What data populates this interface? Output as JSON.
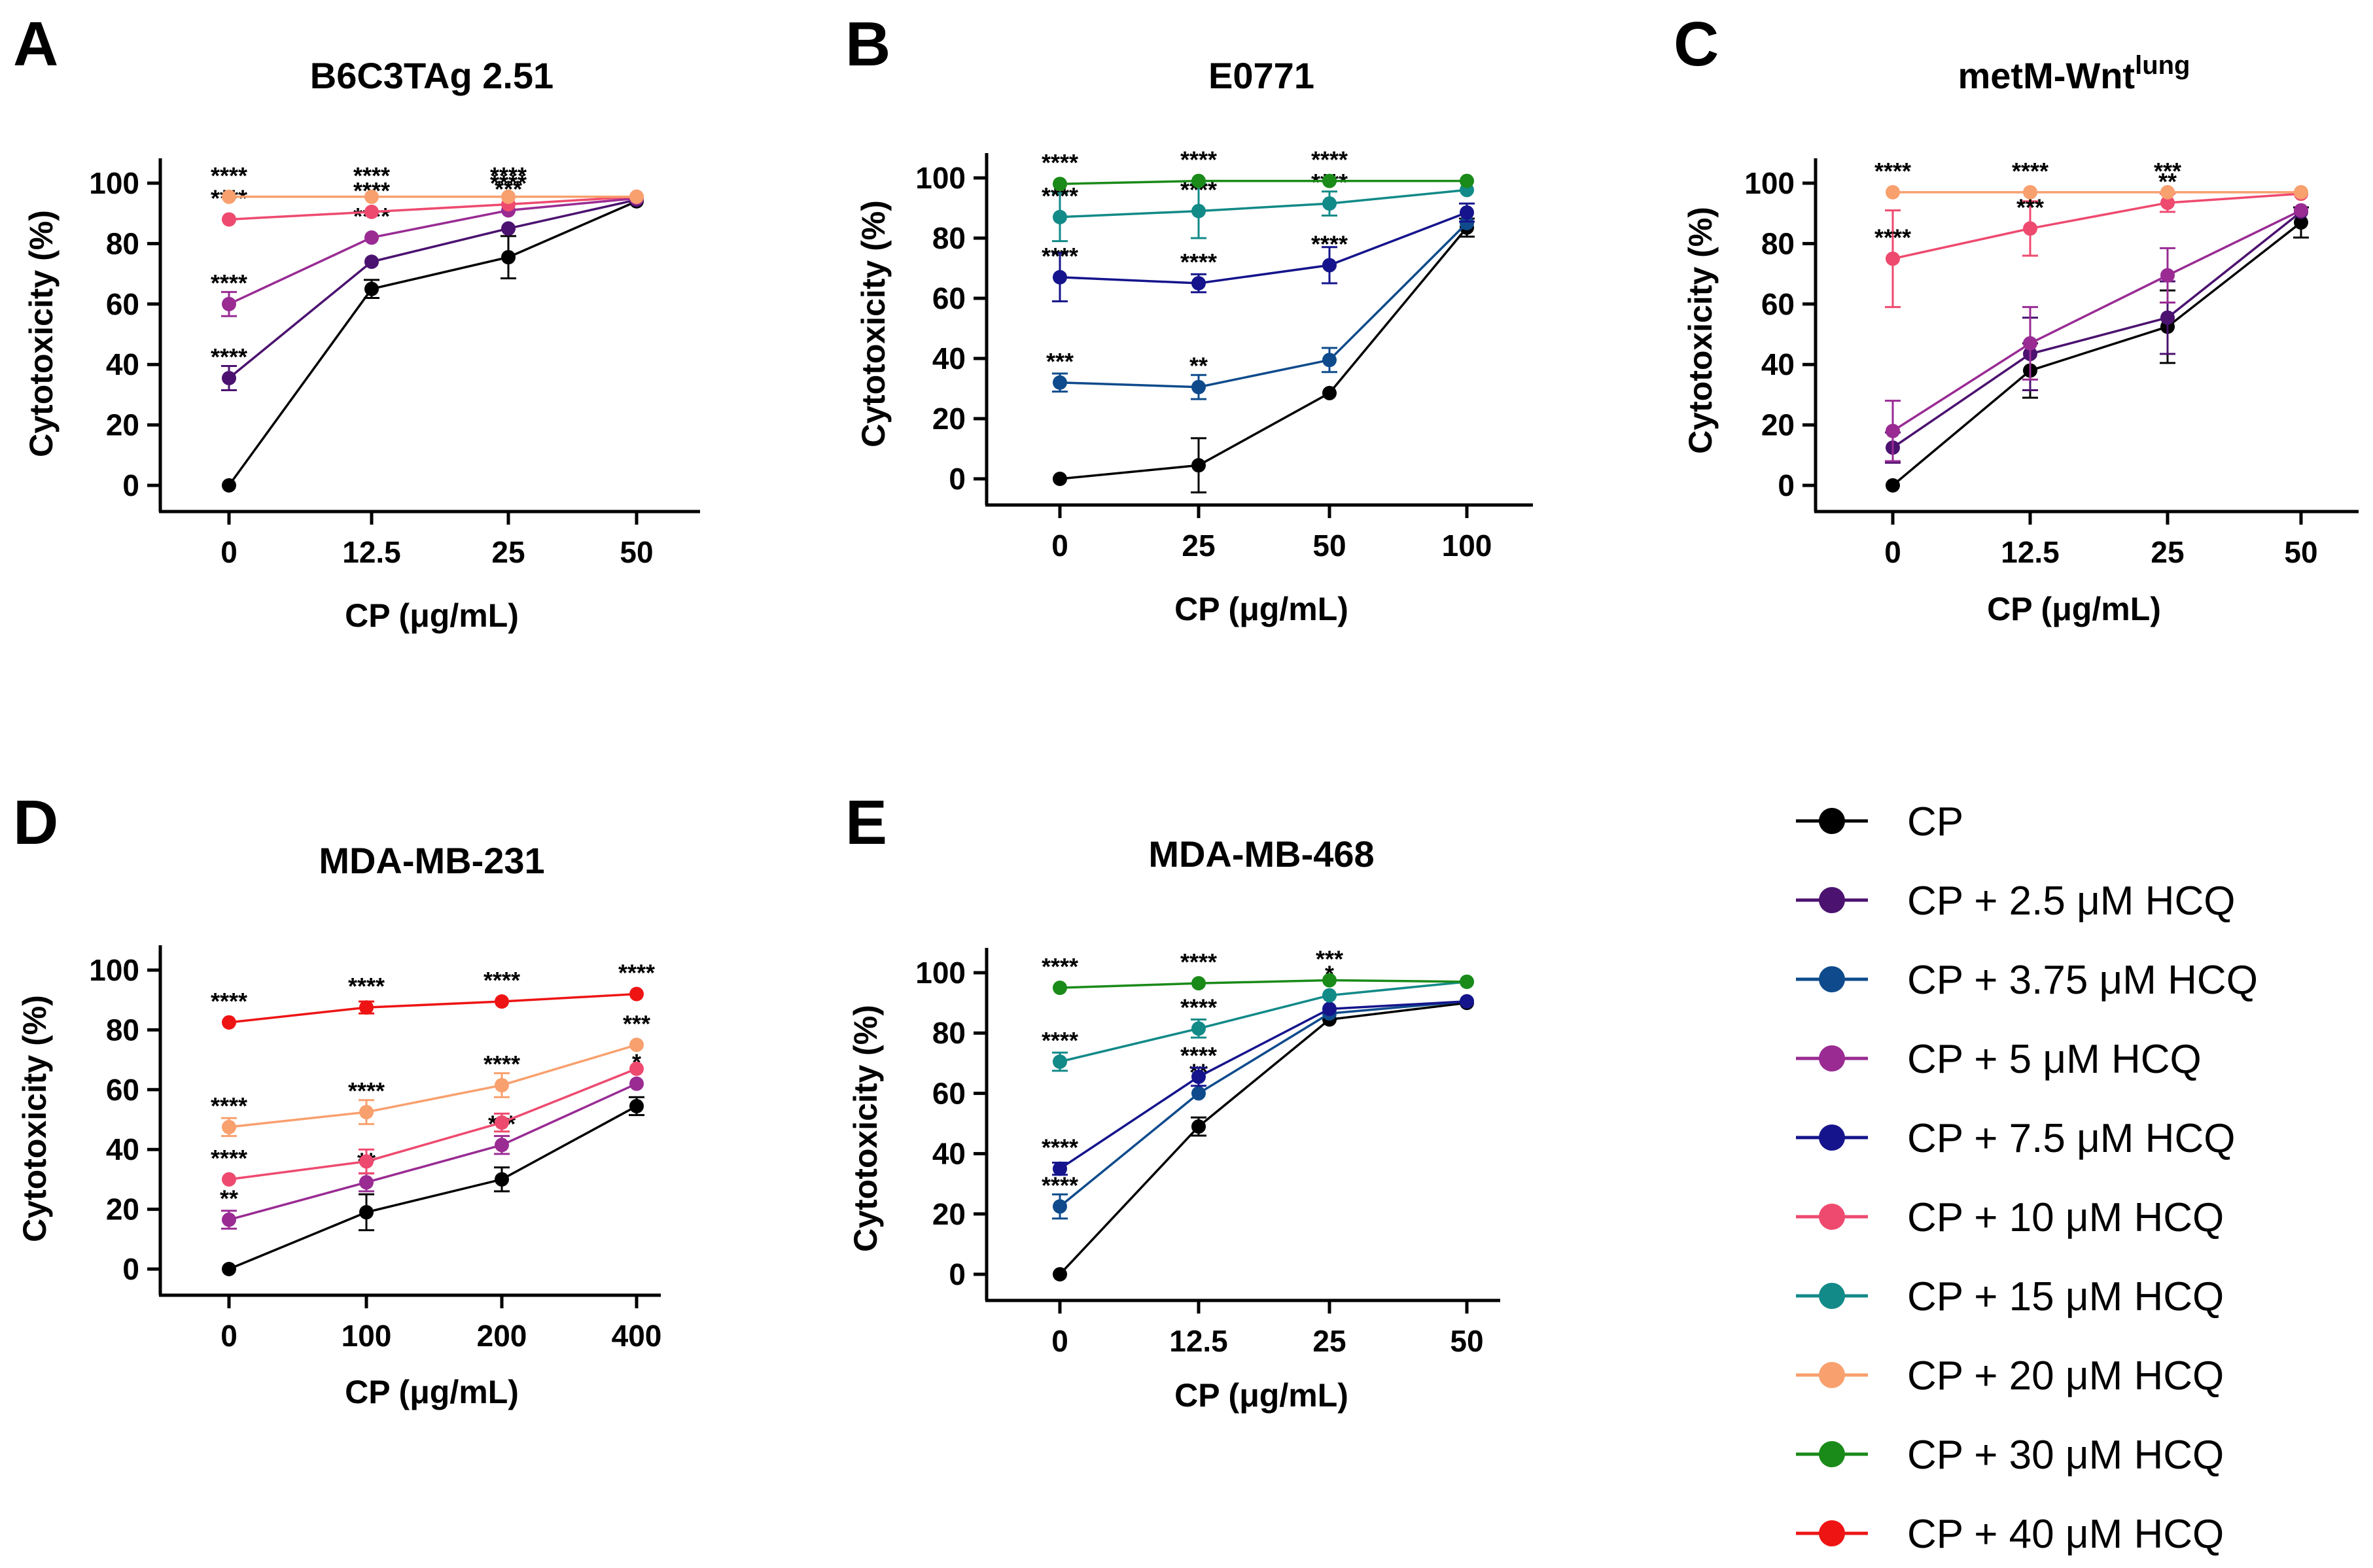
{
  "series_defs": [
    {
      "key": "CP",
      "name": "CP",
      "color": "#000000"
    },
    {
      "key": "h2_5",
      "name": "CP + 2.5 μM HCQ",
      "color": "#4b1270"
    },
    {
      "key": "h3_75",
      "name": "CP + 3.75 μM HCQ",
      "color": "#0f4b8c"
    },
    {
      "key": "h5",
      "name": "CP + 5 μM HCQ",
      "color": "#992b93"
    },
    {
      "key": "h7_5",
      "name": "CP + 7.5 μM HCQ",
      "color": "#15148c"
    },
    {
      "key": "h10",
      "name": "CP + 10 μM HCQ",
      "color": "#ee4a6f"
    },
    {
      "key": "h15",
      "name": "CP + 15 μM HCQ",
      "color": "#128a88"
    },
    {
      "key": "h20",
      "name": "CP + 20 μM HCQ",
      "color": "#f8a06e"
    },
    {
      "key": "h30",
      "name": "CP + 30 μM HCQ",
      "color": "#1a8a19"
    },
    {
      "key": "h40",
      "name": "CP + 40 μM HCQ",
      "color": "#ee1414"
    }
  ],
  "chart_data": [
    {
      "panel": "A",
      "type": "line",
      "title": "B6C3TAg 2.51",
      "title_sup": "",
      "xlabel": "CP (μg/mL)",
      "ylabel": "Cytotoxicity (%)",
      "categories": [
        "0",
        "12.5",
        "25",
        "50"
      ],
      "ylim": [
        0,
        100
      ],
      "yticks": [
        "0",
        "20",
        "40",
        "60",
        "80",
        "100"
      ],
      "series": [
        {
          "key": "CP",
          "values": [
            0,
            65,
            75.5,
            94
          ],
          "errors": [
            0,
            3,
            7,
            0
          ]
        },
        {
          "key": "h2_5",
          "values": [
            35.5,
            74,
            85,
            94.5
          ],
          "errors": [
            4,
            0,
            0,
            0
          ],
          "annotations": [
            "****",
            "*",
            "*",
            ""
          ]
        },
        {
          "key": "h5",
          "values": [
            60,
            82,
            91,
            95
          ],
          "errors": [
            4,
            0,
            0,
            0
          ],
          "annotations": [
            "****",
            "****",
            "***",
            ""
          ]
        },
        {
          "key": "h10",
          "values": [
            88,
            90.5,
            93,
            95.5
          ],
          "errors": [
            0,
            0,
            0,
            0
          ],
          "annotations": [
            "****",
            "****",
            "****",
            ""
          ]
        },
        {
          "key": "h20",
          "values": [
            95.5,
            95.5,
            95.5,
            95.5
          ],
          "errors": [
            0,
            0,
            0,
            0
          ],
          "annotations": [
            "****",
            "****",
            "****",
            ""
          ]
        }
      ]
    },
    {
      "panel": "B",
      "type": "line",
      "title": "E0771",
      "title_sup": "",
      "xlabel": "CP (μg/mL)",
      "ylabel": "Cytotoxicity (%)",
      "categories": [
        "0",
        "25",
        "50",
        "100"
      ],
      "ylim": [
        0,
        100
      ],
      "yticks": [
        "0",
        "20",
        "40",
        "60",
        "80",
        "100"
      ],
      "series": [
        {
          "key": "CP",
          "values": [
            0,
            4.5,
            28.5,
            83.5
          ],
          "errors": [
            0,
            9,
            0,
            3
          ]
        },
        {
          "key": "h3_75",
          "values": [
            32,
            30.5,
            39.5,
            85
          ],
          "errors": [
            3,
            4,
            4,
            0
          ],
          "annotations": [
            "***",
            "**",
            "",
            ""
          ]
        },
        {
          "key": "h7_5",
          "values": [
            67,
            65,
            71,
            88.5
          ],
          "errors": [
            8,
            3,
            6,
            3
          ],
          "annotations": [
            "****",
            "****",
            "****",
            ""
          ]
        },
        {
          "key": "h15",
          "values": [
            87,
            89,
            91.5,
            96
          ],
          "errors": [
            8,
            9,
            4,
            0
          ],
          "annotations": [
            "****",
            "****",
            "****",
            ""
          ]
        },
        {
          "key": "h30",
          "values": [
            98,
            99,
            99,
            99
          ],
          "errors": [
            0,
            0,
            0,
            0
          ],
          "annotations": [
            "****",
            "****",
            "****",
            ""
          ]
        }
      ]
    },
    {
      "panel": "C",
      "type": "line",
      "title": "metM-Wnt",
      "title_sup": "lung",
      "xlabel": "CP (μg/mL)",
      "ylabel": "Cytotoxicity (%)",
      "categories": [
        "0",
        "12.5",
        "25",
        "50"
      ],
      "ylim": [
        0,
        100
      ],
      "yticks": [
        "0",
        "20",
        "40",
        "60",
        "80",
        "100"
      ],
      "series": [
        {
          "key": "CP",
          "values": [
            0,
            38,
            52.5,
            87
          ],
          "errors": [
            0,
            9,
            12,
            5
          ]
        },
        {
          "key": "h2_5",
          "values": [
            12.5,
            43.5,
            55.5,
            90.5
          ],
          "errors": [
            5,
            12,
            12,
            0
          ]
        },
        {
          "key": "h5",
          "values": [
            18,
            47,
            69.5,
            91
          ],
          "errors": [
            10,
            12,
            9,
            0
          ]
        },
        {
          "key": "h10",
          "values": [
            75,
            85,
            93.5,
            96.5
          ],
          "errors": [
            16,
            9,
            3,
            0
          ],
          "annotations": [
            "****",
            "***",
            "**",
            ""
          ]
        },
        {
          "key": "h20",
          "values": [
            97,
            97,
            97,
            97
          ],
          "errors": [
            0,
            0,
            0,
            0
          ],
          "annotations": [
            "****",
            "****",
            "***",
            ""
          ]
        }
      ]
    },
    {
      "panel": "D",
      "type": "line",
      "title": "MDA-MB-231",
      "title_sup": "",
      "xlabel": "CP (μg/mL)",
      "ylabel": "Cytotoxicity (%)",
      "categories": [
        "0",
        "100",
        "200",
        "400"
      ],
      "ylim": [
        0,
        100
      ],
      "yticks": [
        "0",
        "20",
        "40",
        "60",
        "80",
        "100"
      ],
      "series": [
        {
          "key": "CP",
          "values": [
            0,
            19,
            30,
            54.5
          ],
          "errors": [
            0,
            6,
            4,
            3
          ]
        },
        {
          "key": "h5",
          "values": [
            16.5,
            29,
            41.5,
            62
          ],
          "errors": [
            3,
            3,
            3,
            0
          ],
          "annotations": [
            "**",
            "**",
            "***",
            "*"
          ]
        },
        {
          "key": "h10",
          "values": [
            30,
            36,
            49,
            67
          ],
          "errors": [
            0,
            4,
            3,
            0
          ],
          "annotations": [
            "****",
            "",
            "",
            ""
          ]
        },
        {
          "key": "h20",
          "values": [
            47.5,
            52.5,
            61.5,
            75
          ],
          "errors": [
            3,
            4,
            4,
            0
          ],
          "annotations": [
            "****",
            "****",
            "****",
            "***"
          ]
        },
        {
          "key": "h40",
          "values": [
            82.5,
            87.5,
            89.5,
            92
          ],
          "errors": [
            0,
            2,
            0,
            0
          ],
          "annotations": [
            "****",
            "****",
            "****",
            "****"
          ]
        }
      ]
    },
    {
      "panel": "E",
      "type": "line",
      "title": "MDA-MB-468",
      "title_sup": "",
      "xlabel": "CP (μg/mL)",
      "ylabel": "Cytotoxicity (%)",
      "categories": [
        "0",
        "12.5",
        "25",
        "50"
      ],
      "ylim": [
        0,
        100
      ],
      "yticks": [
        "0",
        "20",
        "40",
        "60",
        "80",
        "100"
      ],
      "series": [
        {
          "key": "CP",
          "values": [
            0,
            49,
            84.5,
            90
          ],
          "errors": [
            0,
            3,
            0,
            0
          ]
        },
        {
          "key": "h3_75",
          "values": [
            22.5,
            60,
            86.5,
            90.5
          ],
          "errors": [
            4,
            0,
            0,
            0
          ],
          "annotations": [
            "****",
            "**",
            "",
            ""
          ]
        },
        {
          "key": "h7_5",
          "values": [
            35,
            65.5,
            88,
            90.5
          ],
          "errors": [
            2,
            3,
            0,
            0
          ],
          "annotations": [
            "****",
            "****",
            "",
            ""
          ]
        },
        {
          "key": "h15",
          "values": [
            70.5,
            81.5,
            92.5,
            97
          ],
          "errors": [
            3,
            3,
            0,
            0
          ],
          "annotations": [
            "****",
            "****",
            "*",
            ""
          ]
        },
        {
          "key": "h30",
          "values": [
            95,
            96.5,
            97.5,
            97
          ],
          "errors": [
            0,
            0,
            0,
            0
          ],
          "annotations": [
            "****",
            "****",
            "***",
            ""
          ]
        }
      ]
    }
  ]
}
